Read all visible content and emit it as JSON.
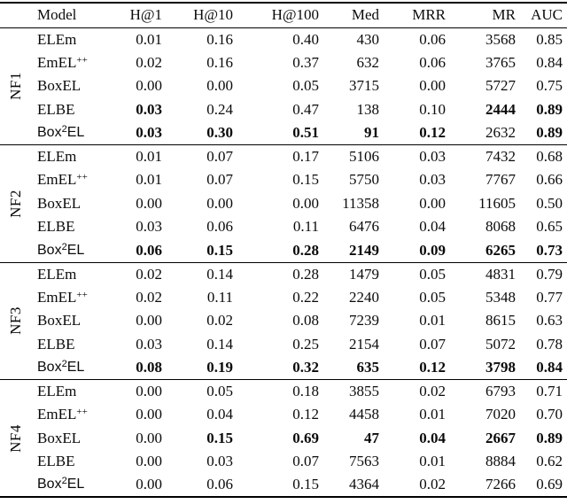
{
  "page": {
    "background_color": "#ffffff",
    "text_color": "#0a0a0a",
    "rule_color": "#000000"
  },
  "table": {
    "headers": [
      "Model",
      "H@1",
      "H@10",
      "H@100",
      "Med",
      "MRR",
      "MR",
      "AUC"
    ],
    "groups": [
      {
        "label": "NF1",
        "rows": [
          {
            "model": {
              "pre": "ELEm",
              "sup": "",
              "post": "",
              "sans": false
            },
            "values": [
              "0.01",
              "0.16",
              "0.40",
              "430",
              "0.06",
              "3568",
              "0.85"
            ],
            "bold": [
              false,
              false,
              false,
              false,
              false,
              false,
              false
            ]
          },
          {
            "model": {
              "pre": "EmEL",
              "sup": "++",
              "post": "",
              "sans": false
            },
            "values": [
              "0.02",
              "0.16",
              "0.37",
              "632",
              "0.06",
              "3765",
              "0.84"
            ],
            "bold": [
              false,
              false,
              false,
              false,
              false,
              false,
              false
            ]
          },
          {
            "model": {
              "pre": "BoxEL",
              "sup": "",
              "post": "",
              "sans": false
            },
            "values": [
              "0.00",
              "0.00",
              "0.05",
              "3715",
              "0.00",
              "5727",
              "0.75"
            ],
            "bold": [
              false,
              false,
              false,
              false,
              false,
              false,
              false
            ]
          },
          {
            "model": {
              "pre": "ELBE",
              "sup": "",
              "post": "",
              "sans": false
            },
            "values": [
              "0.03",
              "0.24",
              "0.47",
              "138",
              "0.10",
              "2444",
              "0.89"
            ],
            "bold": [
              true,
              false,
              false,
              false,
              false,
              true,
              true
            ]
          },
          {
            "model": {
              "pre": "Box",
              "sup": "2",
              "post": "EL",
              "sans": true
            },
            "values": [
              "0.03",
              "0.30",
              "0.51",
              "91",
              "0.12",
              "2632",
              "0.89"
            ],
            "bold": [
              true,
              true,
              true,
              true,
              true,
              false,
              true
            ]
          }
        ]
      },
      {
        "label": "NF2",
        "rows": [
          {
            "model": {
              "pre": "ELEm",
              "sup": "",
              "post": "",
              "sans": false
            },
            "values": [
              "0.01",
              "0.07",
              "0.17",
              "5106",
              "0.03",
              "7432",
              "0.68"
            ],
            "bold": [
              false,
              false,
              false,
              false,
              false,
              false,
              false
            ]
          },
          {
            "model": {
              "pre": "EmEL",
              "sup": "++",
              "post": "",
              "sans": false
            },
            "values": [
              "0.01",
              "0.07",
              "0.15",
              "5750",
              "0.03",
              "7767",
              "0.66"
            ],
            "bold": [
              false,
              false,
              false,
              false,
              false,
              false,
              false
            ]
          },
          {
            "model": {
              "pre": "BoxEL",
              "sup": "",
              "post": "",
              "sans": false
            },
            "values": [
              "0.00",
              "0.00",
              "0.00",
              "11358",
              "0.00",
              "11605",
              "0.50"
            ],
            "bold": [
              false,
              false,
              false,
              false,
              false,
              false,
              false
            ]
          },
          {
            "model": {
              "pre": "ELBE",
              "sup": "",
              "post": "",
              "sans": false
            },
            "values": [
              "0.03",
              "0.06",
              "0.11",
              "6476",
              "0.04",
              "8068",
              "0.65"
            ],
            "bold": [
              false,
              false,
              false,
              false,
              false,
              false,
              false
            ]
          },
          {
            "model": {
              "pre": "Box",
              "sup": "2",
              "post": "EL",
              "sans": true
            },
            "values": [
              "0.06",
              "0.15",
              "0.28",
              "2149",
              "0.09",
              "6265",
              "0.73"
            ],
            "bold": [
              true,
              true,
              true,
              true,
              true,
              true,
              true
            ]
          }
        ]
      },
      {
        "label": "NF3",
        "rows": [
          {
            "model": {
              "pre": "ELEm",
              "sup": "",
              "post": "",
              "sans": false
            },
            "values": [
              "0.02",
              "0.14",
              "0.28",
              "1479",
              "0.05",
              "4831",
              "0.79"
            ],
            "bold": [
              false,
              false,
              false,
              false,
              false,
              false,
              false
            ]
          },
          {
            "model": {
              "pre": "EmEL",
              "sup": "++",
              "post": "",
              "sans": false
            },
            "values": [
              "0.02",
              "0.11",
              "0.22",
              "2240",
              "0.05",
              "5348",
              "0.77"
            ],
            "bold": [
              false,
              false,
              false,
              false,
              false,
              false,
              false
            ]
          },
          {
            "model": {
              "pre": "BoxEL",
              "sup": "",
              "post": "",
              "sans": false
            },
            "values": [
              "0.00",
              "0.02",
              "0.08",
              "7239",
              "0.01",
              "8615",
              "0.63"
            ],
            "bold": [
              false,
              false,
              false,
              false,
              false,
              false,
              false
            ]
          },
          {
            "model": {
              "pre": "ELBE",
              "sup": "",
              "post": "",
              "sans": false
            },
            "values": [
              "0.03",
              "0.14",
              "0.25",
              "2154",
              "0.07",
              "5072",
              "0.78"
            ],
            "bold": [
              false,
              false,
              false,
              false,
              false,
              false,
              false
            ]
          },
          {
            "model": {
              "pre": "Box",
              "sup": "2",
              "post": "EL",
              "sans": true
            },
            "values": [
              "0.08",
              "0.19",
              "0.32",
              "635",
              "0.12",
              "3798",
              "0.84"
            ],
            "bold": [
              true,
              true,
              true,
              true,
              true,
              true,
              true
            ]
          }
        ]
      },
      {
        "label": "NF4",
        "rows": [
          {
            "model": {
              "pre": "ELEm",
              "sup": "",
              "post": "",
              "sans": false
            },
            "values": [
              "0.00",
              "0.05",
              "0.18",
              "3855",
              "0.02",
              "6793",
              "0.71"
            ],
            "bold": [
              false,
              false,
              false,
              false,
              false,
              false,
              false
            ]
          },
          {
            "model": {
              "pre": "EmEL",
              "sup": "++",
              "post": "",
              "sans": false
            },
            "values": [
              "0.00",
              "0.04",
              "0.12",
              "4458",
              "0.01",
              "7020",
              "0.70"
            ],
            "bold": [
              false,
              false,
              false,
              false,
              false,
              false,
              false
            ]
          },
          {
            "model": {
              "pre": "BoxEL",
              "sup": "",
              "post": "",
              "sans": false
            },
            "values": [
              "0.00",
              "0.15",
              "0.69",
              "47",
              "0.04",
              "2667",
              "0.89"
            ],
            "bold": [
              false,
              true,
              true,
              true,
              true,
              true,
              true
            ]
          },
          {
            "model": {
              "pre": "ELBE",
              "sup": "",
              "post": "",
              "sans": false
            },
            "values": [
              "0.00",
              "0.03",
              "0.07",
              "7563",
              "0.01",
              "8884",
              "0.62"
            ],
            "bold": [
              false,
              false,
              false,
              false,
              false,
              false,
              false
            ]
          },
          {
            "model": {
              "pre": "Box",
              "sup": "2",
              "post": "EL",
              "sans": true
            },
            "values": [
              "0.00",
              "0.06",
              "0.15",
              "4364",
              "0.02",
              "7266",
              "0.69"
            ],
            "bold": [
              false,
              false,
              false,
              false,
              false,
              false,
              false
            ]
          }
        ]
      }
    ]
  }
}
